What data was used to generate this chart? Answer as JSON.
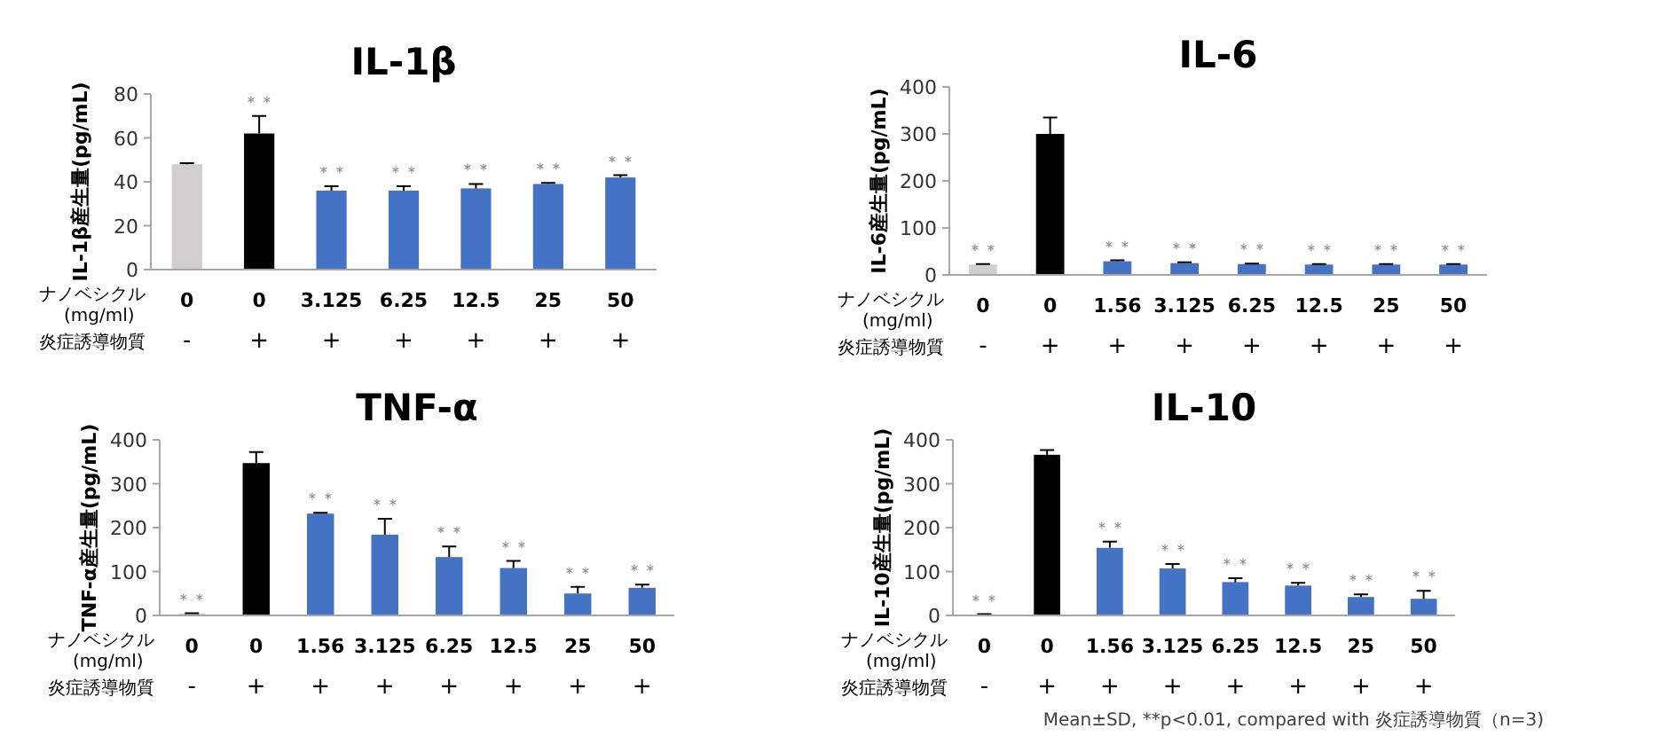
{
  "chart_data": [
    {
      "type": "bar",
      "title": "IL-1β",
      "ylabel": "IL-1β産生量(pg/mL)",
      "categories": [
        "0",
        "0",
        "3.125",
        "6.25",
        "12.5",
        "25",
        "50"
      ],
      "values": [
        48,
        62,
        36,
        36,
        37,
        39,
        42
      ],
      "errors": [
        0.5,
        8,
        2,
        2,
        2,
        0.5,
        1
      ],
      "colors": [
        "#d0cece",
        "#000000",
        "#4472c4",
        "#4472c4",
        "#4472c4",
        "#4472c4",
        "#4472c4"
      ],
      "value_labels": [
        null,
        "＊＊",
        "＊＊",
        "＊＊",
        "＊＊",
        "＊＊",
        "＊＊"
      ],
      "ylim": [
        0,
        80
      ],
      "yticks": [
        0,
        20,
        40,
        60,
        80
      ],
      "annotations": [
        "ナノベシクル (mg/ml)",
        "炎症誘導物質",
        "-",
        "+",
        "+",
        "+",
        "+",
        "+",
        "+"
      ]
    },
    {
      "type": "bar",
      "title": "IL-6",
      "ylabel": "IL-6産生量(pg/mL)",
      "categories": [
        "0",
        "0",
        "1.56",
        "3.125",
        "6.25",
        "12.5",
        "25",
        "50"
      ],
      "values": [
        22,
        300,
        29,
        25,
        23,
        22,
        22,
        22
      ],
      "errors": [
        1,
        35,
        2,
        2,
        1,
        1,
        1,
        1
      ],
      "colors": [
        "#d0cece",
        "#000000",
        "#4472c4",
        "#4472c4",
        "#4472c4",
        "#4472c4",
        "#4472c4",
        "#4472c4"
      ],
      "value_labels": [
        "＊＊",
        null,
        "＊＊",
        "＊＊",
        "＊＊",
        "＊＊",
        "＊＊",
        "＊＊"
      ],
      "ylim": [
        0,
        400
      ],
      "yticks": [
        0,
        100,
        200,
        300,
        400
      ],
      "annotations": [
        "ナノベシクル (mg/ml)",
        "炎症誘導物質",
        "-",
        "+",
        "+",
        "+",
        "+",
        "+",
        "+",
        "+"
      ]
    },
    {
      "type": "bar",
      "title": "TNF-α",
      "ylabel": "TNF-α産生量(pg/mL)",
      "categories": [
        "0",
        "0",
        "1.56",
        "3.125",
        "6.25",
        "12.5",
        "25",
        "50"
      ],
      "values": [
        4,
        347,
        232,
        184,
        133,
        108,
        50,
        63
      ],
      "errors": [
        1,
        25,
        2,
        36,
        24,
        16,
        15,
        7
      ],
      "colors": [
        "#d0cece",
        "#000000",
        "#4472c4",
        "#4472c4",
        "#4472c4",
        "#4472c4",
        "#4472c4",
        "#4472c4"
      ],
      "value_labels": [
        "＊＊",
        null,
        "＊＊",
        "＊＊",
        "＊＊",
        "＊＊",
        "＊＊",
        "＊＊"
      ],
      "ylim": [
        0,
        400
      ],
      "yticks": [
        0,
        100,
        200,
        300,
        400
      ],
      "annotations": [
        "ナノベシクル (mg/ml)",
        "炎症誘導物質",
        "-",
        "+",
        "+",
        "+",
        "+",
        "+",
        "+",
        "+"
      ]
    },
    {
      "type": "bar",
      "title": "IL-10",
      "ylabel": "IL-10産生量(pg/mL)",
      "categories": [
        "0",
        "0",
        "1.56",
        "3.125",
        "6.25",
        "12.5",
        "25",
        "50"
      ],
      "values": [
        2,
        366,
        154,
        107,
        76,
        68,
        42,
        38
      ],
      "errors": [
        1,
        11,
        14,
        10,
        9,
        6,
        6,
        18
      ],
      "colors": [
        "#d0cece",
        "#000000",
        "#4472c4",
        "#4472c4",
        "#4472c4",
        "#4472c4",
        "#4472c4",
        "#4472c4"
      ],
      "value_labels": [
        "＊＊",
        null,
        "＊＊",
        "＊＊",
        "＊＊",
        "＊＊",
        "＊＊",
        "＊＊"
      ],
      "ylim": [
        0,
        400
      ],
      "yticks": [
        0,
        100,
        200,
        300,
        400
      ],
      "annotations": [
        "ナノベシクル (mg/ml)",
        "炎症誘導物質",
        "-",
        "+",
        "+",
        "+",
        "+",
        "+",
        "+",
        "+",
        "Mean±SD, **p<0.01, compared with 炎症誘導物質（n=3)"
      ]
    }
  ]
}
